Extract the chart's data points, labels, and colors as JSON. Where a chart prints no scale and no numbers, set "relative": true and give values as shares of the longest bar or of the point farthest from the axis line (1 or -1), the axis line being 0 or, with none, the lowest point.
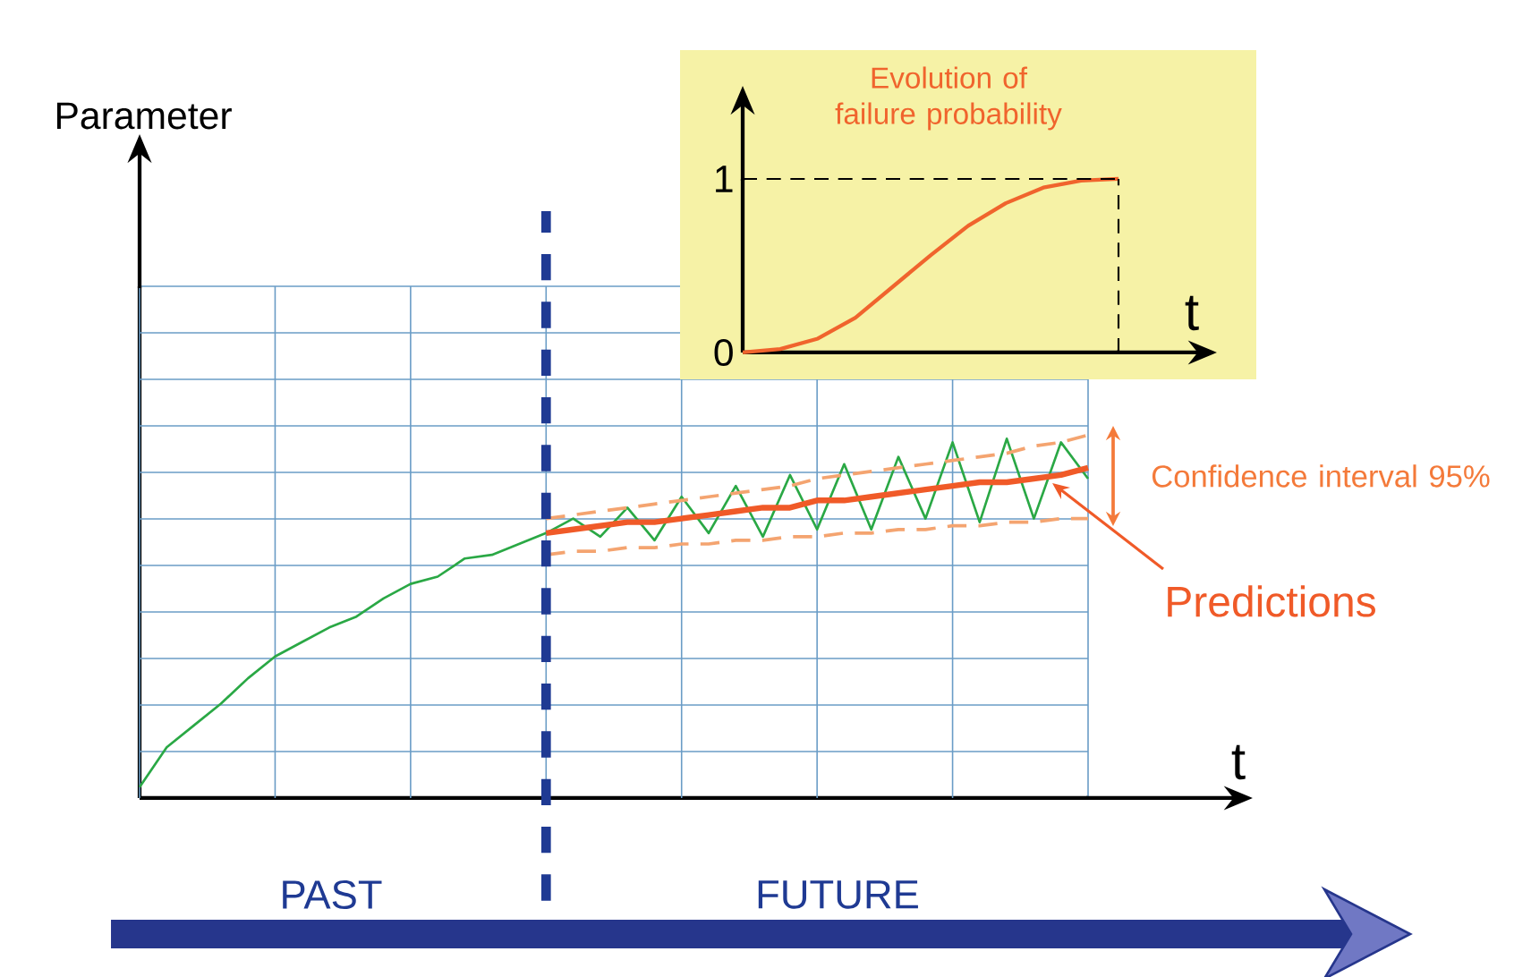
{
  "chart_data": [
    {
      "type": "line",
      "relative": true,
      "ylabel": "Parameter",
      "xlabel": "t",
      "grid": true,
      "categories": [
        null,
        null,
        null,
        null,
        null,
        null,
        null,
        null,
        null,
        null,
        null,
        null,
        null,
        null,
        null,
        null,
        null,
        null,
        null,
        null,
        null,
        null,
        null,
        null,
        null,
        null,
        null,
        null,
        null,
        null,
        null,
        null,
        null,
        null,
        null,
        null
      ],
      "series": [
        {
          "color": "#2aa845",
          "values": [
            0.03,
            0.14,
            0.2,
            0.26,
            0.33,
            0.39,
            0.43,
            0.47,
            0.5,
            0.55,
            0.59,
            0.61,
            0.66,
            0.67,
            0.7,
            0.73,
            0.77,
            0.72,
            0.8,
            0.71,
            0.83,
            0.73,
            0.86,
            0.72,
            0.89,
            0.74,
            0.92,
            0.74,
            0.94,
            0.77,
            0.98,
            0.76,
            0.99,
            0.77,
            0.98,
            0.88
          ]
        },
        {
          "name": "Predictions",
          "color": "#f05a28",
          "values": [
            null,
            null,
            null,
            null,
            null,
            null,
            null,
            null,
            null,
            null,
            null,
            null,
            null,
            null,
            null,
            0.73,
            0.74,
            0.75,
            0.76,
            0.76,
            0.77,
            0.78,
            0.79,
            0.8,
            0.8,
            0.82,
            0.82,
            0.83,
            0.84,
            0.85,
            0.86,
            0.87,
            0.87,
            0.88,
            0.89,
            0.91
          ]
        },
        {
          "color": "#f4a470",
          "line_style": "dashed",
          "values": [
            null,
            null,
            null,
            null,
            null,
            null,
            null,
            null,
            null,
            null,
            null,
            null,
            null,
            null,
            null,
            0.67,
            0.68,
            0.68,
            0.69,
            0.69,
            0.7,
            0.7,
            0.71,
            0.71,
            0.72,
            0.72,
            0.73,
            0.73,
            0.74,
            0.74,
            0.75,
            0.75,
            0.76,
            0.76,
            0.77,
            0.77
          ]
        },
        {
          "color": "#f4a470",
          "line_style": "dashed",
          "values": [
            null,
            null,
            null,
            null,
            null,
            null,
            null,
            null,
            null,
            null,
            null,
            null,
            null,
            null,
            null,
            0.77,
            0.78,
            0.79,
            0.8,
            0.81,
            0.82,
            0.83,
            0.84,
            0.85,
            0.86,
            0.88,
            0.89,
            0.9,
            0.91,
            0.92,
            0.93,
            0.94,
            0.95,
            0.97,
            0.98,
            1.0
          ]
        }
      ],
      "annotations": [
        "Confidence interval 95%",
        "PAST",
        "FUTURE"
      ]
    },
    {
      "type": "line",
      "title": "Evolution of failure probability",
      "xlabel": "t",
      "tick_labels": "y",
      "categories": [
        null,
        null,
        null,
        null,
        null,
        null,
        null,
        null,
        null,
        null,
        null
      ],
      "ylim": [
        0,
        1
      ],
      "yticks": [
        0,
        1
      ],
      "series": [
        {
          "color": "#f0642d",
          "values": [
            0,
            0.02,
            0.08,
            0.2,
            0.38,
            0.56,
            0.73,
            0.86,
            0.95,
            0.99,
            1.0
          ]
        }
      ],
      "ref_lines": [
        {
          "axis": "y",
          "value": 1,
          "color": "#000000",
          "line_style": "dashed"
        }
      ]
    }
  ]
}
